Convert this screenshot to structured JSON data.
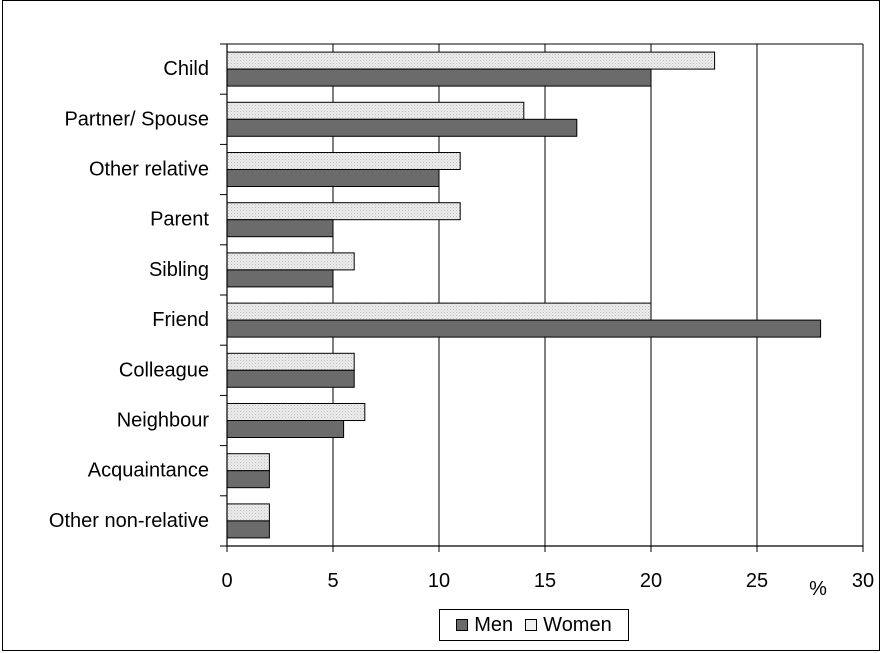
{
  "chart_data": {
    "type": "bar",
    "orientation": "horizontal",
    "categories": [
      "Child",
      "Partner/ Spouse",
      "Other relative",
      "Parent",
      "Sibling",
      "Friend",
      "Colleague",
      "Neighbour",
      "Acquaintance",
      "Other non-relative"
    ],
    "series": [
      {
        "name": "Women",
        "values": [
          23,
          14,
          11,
          11,
          6,
          20,
          6,
          6.5,
          2,
          2
        ]
      },
      {
        "name": "Men",
        "values": [
          20,
          16.5,
          10,
          5,
          5,
          28,
          6,
          5.5,
          2,
          2
        ]
      }
    ],
    "xlim": [
      0,
      30
    ],
    "xticks": [
      "0",
      "5",
      "10",
      "15",
      "20",
      "25",
      "30"
    ],
    "xlabel": "%",
    "grid": "vertical",
    "legend": {
      "placement": "bottom-center",
      "entries": [
        "Men",
        "Women"
      ]
    },
    "colors": {
      "Men": "#6b6b6b",
      "Women": "#e6e6e6"
    }
  }
}
